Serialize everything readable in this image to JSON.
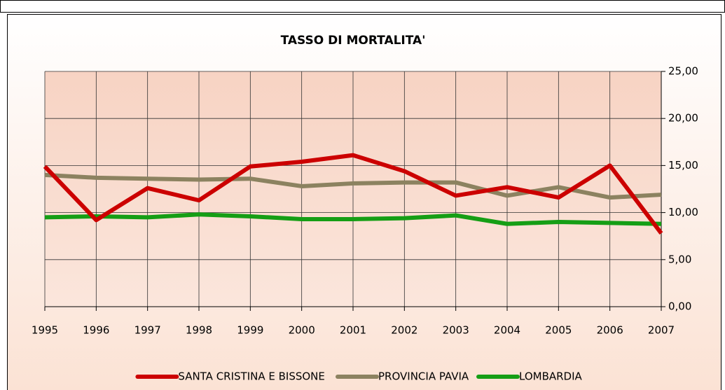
{
  "chart_data": {
    "type": "line",
    "title": "TASSO DI MORTALITA'",
    "categories": [
      "1995",
      "1996",
      "1997",
      "1998",
      "1999",
      "2000",
      "2001",
      "2002",
      "2003",
      "2004",
      "2005",
      "2006",
      "2007"
    ],
    "series": [
      {
        "name": "SANTA CRISTINA E BISSONE",
        "color": "#cc0000",
        "values": [
          14.9,
          9.2,
          12.6,
          11.3,
          14.9,
          15.4,
          16.1,
          14.4,
          11.8,
          12.7,
          11.6,
          15.0,
          7.8
        ]
      },
      {
        "name": "PROVINCIA PAVIA",
        "color": "#8c8260",
        "values": [
          14.0,
          13.7,
          13.6,
          13.5,
          13.6,
          12.8,
          13.1,
          13.2,
          13.2,
          11.8,
          12.7,
          11.6,
          11.9
        ]
      },
      {
        "name": "LOMBARDIA",
        "color": "#159e15",
        "values": [
          9.5,
          9.6,
          9.5,
          9.8,
          9.6,
          9.3,
          9.3,
          9.4,
          9.7,
          8.8,
          9.0,
          8.9,
          8.8
        ]
      }
    ],
    "ylim": [
      0,
      25
    ],
    "yticks": [
      {
        "value": 0,
        "label": "0,00"
      },
      {
        "value": 5,
        "label": "5,00"
      },
      {
        "value": 10,
        "label": "10,00"
      },
      {
        "value": 15,
        "label": "15,00"
      },
      {
        "value": 20,
        "label": "20,00"
      },
      {
        "value": 25,
        "label": "25,00"
      }
    ],
    "y_axis_side": "right",
    "grid": true,
    "legend": "bottom"
  }
}
